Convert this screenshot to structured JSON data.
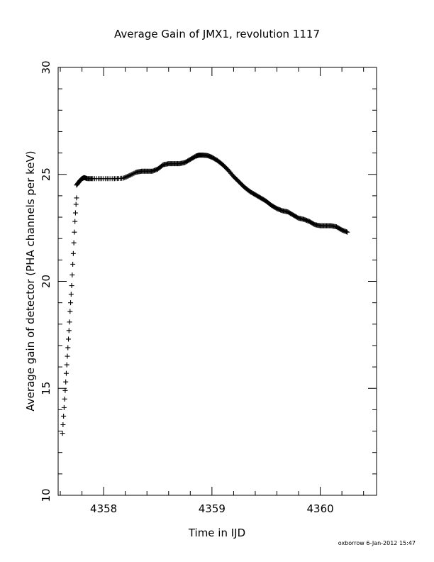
{
  "chart_data": {
    "type": "scatter",
    "title": "Average Gain of JMX1, revolution 1117",
    "xlabel": "Time in IJD",
    "ylabel": "Average gain of detector (PHA channels per keV)",
    "xlim": [
      4357.58,
      4360.52
    ],
    "ylim": [
      10,
      30
    ],
    "xticks_major": [
      4358,
      4359,
      4360
    ],
    "xticks_minor": [
      4357.6,
      4357.8,
      4358.2,
      4358.4,
      4358.6,
      4358.8,
      4359.2,
      4359.4,
      4359.6,
      4359.8,
      4360.2,
      4360.4
    ],
    "yticks_major": [
      10,
      15,
      20,
      25,
      30
    ],
    "yticks_minor": [
      11,
      12,
      13,
      14,
      16,
      17,
      18,
      19,
      21,
      22,
      23,
      24,
      26,
      27,
      28,
      29
    ],
    "grid": false,
    "marker": "+",
    "ramp": {
      "x": [
        4357.62,
        4357.625,
        4357.63,
        4357.635,
        4357.64,
        4357.645,
        4357.65,
        4357.655,
        4357.66,
        4357.665,
        4357.67,
        4357.675,
        4357.68,
        4357.685,
        4357.69,
        4357.695,
        4357.7,
        4357.705,
        4357.71,
        4357.715,
        4357.72,
        4357.725,
        4357.73,
        4357.735,
        4357.74,
        4357.745,
        4357.75
      ],
      "y": [
        12.9,
        13.3,
        13.7,
        14.1,
        14.5,
        14.9,
        15.3,
        15.7,
        16.1,
        16.5,
        16.9,
        17.3,
        17.7,
        18.1,
        18.6,
        19.0,
        19.4,
        19.8,
        20.3,
        20.8,
        21.3,
        21.8,
        22.3,
        22.8,
        23.2,
        23.6,
        23.9
      ]
    },
    "curve": {
      "x": [
        4357.75,
        4357.78,
        4357.8,
        4357.82,
        4357.85,
        4357.9,
        4358.0,
        4358.1,
        4358.18,
        4358.24,
        4358.3,
        4358.35,
        4358.4,
        4358.45,
        4358.5,
        4358.55,
        4358.6,
        4358.65,
        4358.7,
        4358.75,
        4358.8,
        4358.85,
        4358.88,
        4358.92,
        4358.96,
        4359.0,
        4359.05,
        4359.1,
        4359.15,
        4359.2,
        4359.25,
        4359.3,
        4359.35,
        4359.4,
        4359.45,
        4359.5,
        4359.55,
        4359.6,
        4359.65,
        4359.7,
        4359.75,
        4359.8,
        4359.85,
        4359.9,
        4359.95,
        4360.0,
        4360.05,
        4360.1,
        4360.15,
        4360.2,
        4360.25
      ],
      "y": [
        24.5,
        24.7,
        24.8,
        24.85,
        24.8,
        24.8,
        24.8,
        24.8,
        24.82,
        24.95,
        25.1,
        25.15,
        25.15,
        25.15,
        25.25,
        25.45,
        25.5,
        25.5,
        25.5,
        25.55,
        25.7,
        25.85,
        25.9,
        25.9,
        25.88,
        25.8,
        25.65,
        25.45,
        25.2,
        24.9,
        24.65,
        24.4,
        24.2,
        24.05,
        23.9,
        23.75,
        23.55,
        23.4,
        23.3,
        23.25,
        23.1,
        22.95,
        22.9,
        22.8,
        22.65,
        22.6,
        22.6,
        22.6,
        22.55,
        22.4,
        22.3
      ]
    }
  },
  "credit": "oxborrow  6-Jan-2012 15:47"
}
